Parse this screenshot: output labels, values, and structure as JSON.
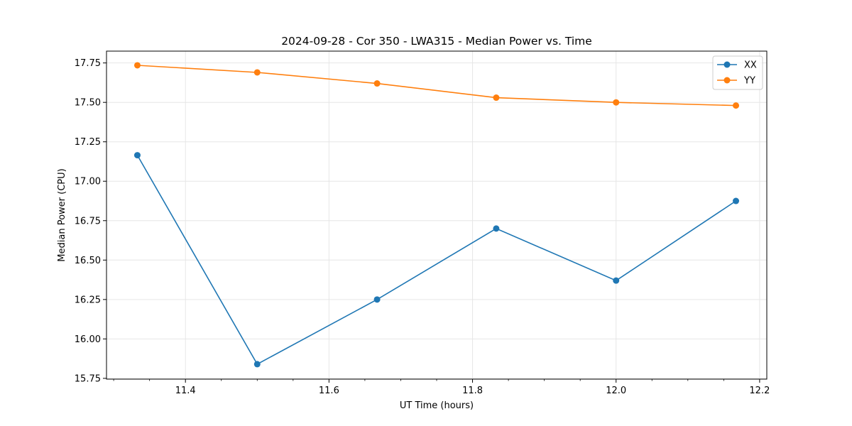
{
  "chart_data": {
    "type": "line",
    "title": "2024-09-28 - Cor 350 - LWA315 - Median Power vs. Time",
    "xlabel": "UT Time (hours)",
    "ylabel": "Median Power (CPU)",
    "xlim": [
      11.29,
      12.21
    ],
    "ylim": [
      15.745,
      17.825
    ],
    "x_ticks": [
      11.4,
      11.6,
      11.8,
      12.0,
      12.2
    ],
    "x_tick_labels": [
      "11.4",
      "11.6",
      "11.8",
      "12.0",
      "12.2"
    ],
    "x_minor_step": 0.05,
    "y_ticks": [
      15.75,
      16.0,
      16.25,
      16.5,
      16.75,
      17.0,
      17.25,
      17.5,
      17.75
    ],
    "y_tick_labels": [
      "15.75",
      "16.00",
      "16.25",
      "16.50",
      "16.75",
      "17.00",
      "17.25",
      "17.50",
      "17.75"
    ],
    "grid": true,
    "legend_position": "top-right",
    "x": [
      11.333,
      11.5,
      11.667,
      11.833,
      12.0,
      12.167
    ],
    "series": [
      {
        "name": "XX",
        "color": "#1f77b4",
        "values": [
          17.165,
          15.84,
          16.25,
          16.7,
          16.37,
          16.875
        ]
      },
      {
        "name": "YY",
        "color": "#ff7f0e",
        "values": [
          17.735,
          17.69,
          17.62,
          17.53,
          17.5,
          17.48
        ]
      }
    ]
  }
}
